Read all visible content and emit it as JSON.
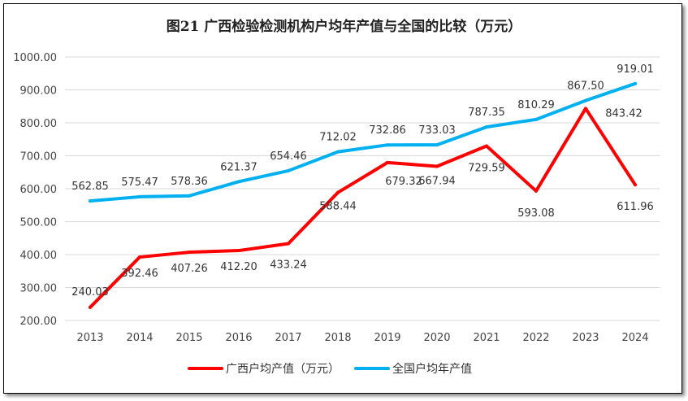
{
  "chart_data": {
    "type": "line",
    "title": "图21 广西检验检测机构户均年产值与全国的比较（万元）",
    "xlabel": "",
    "ylabel": "",
    "categories": [
      "2013",
      "2014",
      "2015",
      "2016",
      "2017",
      "2018",
      "2019",
      "2020",
      "2021",
      "2022",
      "2023",
      "2024"
    ],
    "ylim": [
      200,
      1000
    ],
    "yticks": [
      "200.00",
      "300.00",
      "400.00",
      "500.00",
      "600.00",
      "700.00",
      "800.00",
      "900.00",
      "1000.00"
    ],
    "grid": true,
    "legend_position": "bottom",
    "series": [
      {
        "name": "广西户均产值（万元）",
        "color": "#ff0000",
        "values": [
          240.03,
          392.46,
          407.26,
          412.2,
          433.24,
          588.44,
          679.32,
          667.94,
          729.59,
          593.08,
          843.42,
          611.96
        ],
        "labels": [
          "240.03",
          "392.46",
          "407.26",
          "412.20",
          "433.24",
          "588.44",
          "679.32",
          "667.94",
          "729.59",
          "593.08",
          "843.42",
          "611.96"
        ]
      },
      {
        "name": "全国户均年产值",
        "color": "#00b0f0",
        "values": [
          562.85,
          575.47,
          578.36,
          621.37,
          654.46,
          712.02,
          732.86,
          733.03,
          787.35,
          810.29,
          867.5,
          919.01
        ],
        "labels": [
          "562.85",
          "575.47",
          "578.36",
          "621.37",
          "654.46",
          "712.02",
          "732.86",
          "733.03",
          "787.35",
          "810.29",
          "867.50",
          "919.01"
        ]
      }
    ]
  }
}
